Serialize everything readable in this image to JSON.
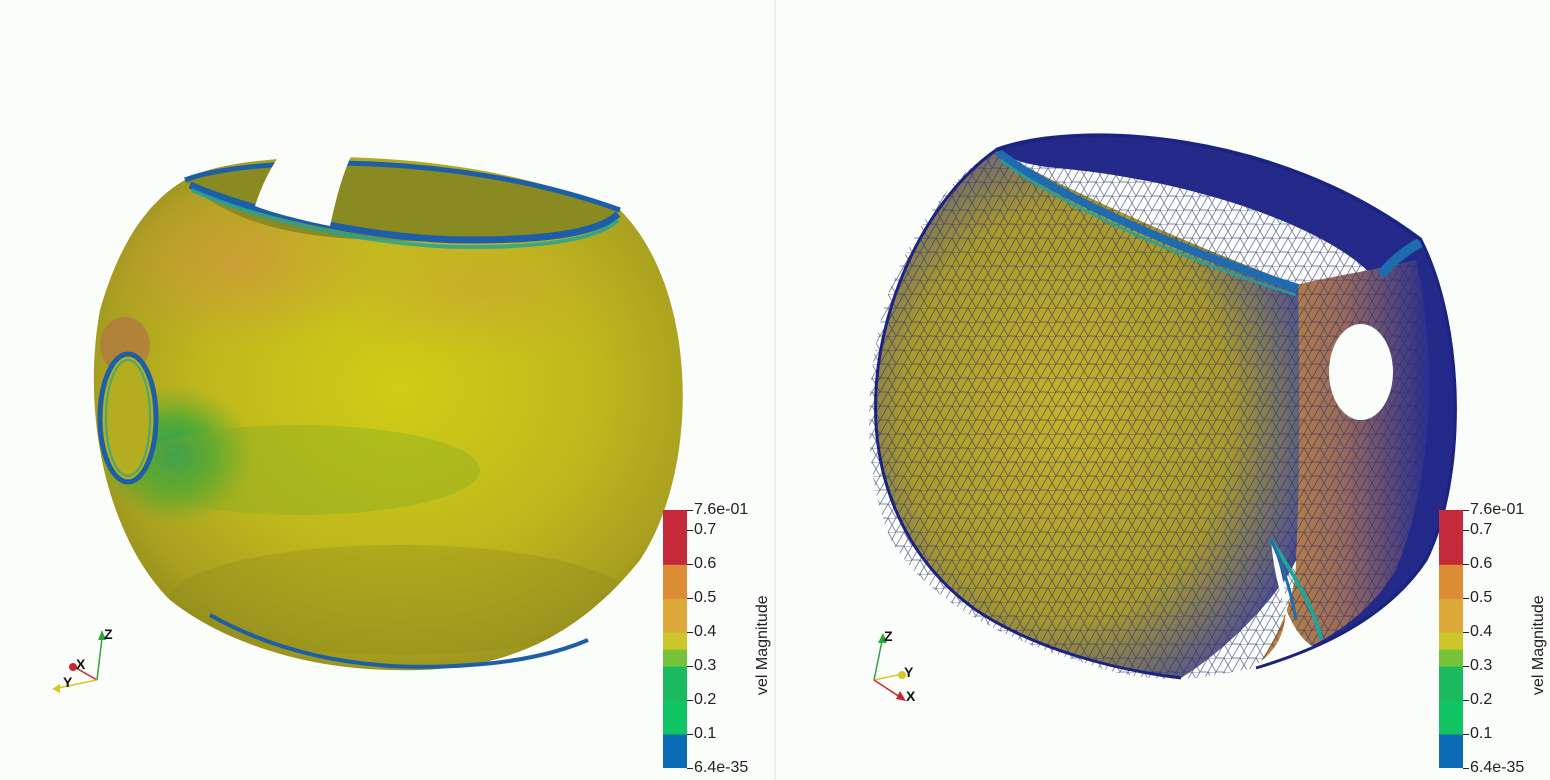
{
  "colormap": {
    "colors": [
      "#0b6bb5",
      "#0d6db3",
      "#1b7f93",
      "#11c565",
      "#76c238",
      "#cbc62a",
      "#e0b43a",
      "#dc8c35",
      "#c42a3a"
    ]
  },
  "viewports": [
    {
      "id": "left",
      "scalar_bar": {
        "title": "vel Magnitude",
        "ticks": [
          "7.6e-01",
          "0.7",
          "0.6",
          "0.5",
          "0.4",
          "0.3",
          "0.2",
          "0.1",
          "6.4e-35"
        ]
      },
      "axes": {
        "x": "X",
        "y": "Y",
        "z": "Z"
      },
      "mesh_visible": false
    },
    {
      "id": "right",
      "scalar_bar": {
        "title": "vel Magnitude",
        "ticks": [
          "7.6e-01",
          "0.7",
          "0.6",
          "0.5",
          "0.4",
          "0.3",
          "0.2",
          "0.1",
          "6.4e-35"
        ]
      },
      "axes": {
        "x": "X",
        "y": "Y",
        "z": "Z"
      },
      "mesh_visible": true
    }
  ]
}
